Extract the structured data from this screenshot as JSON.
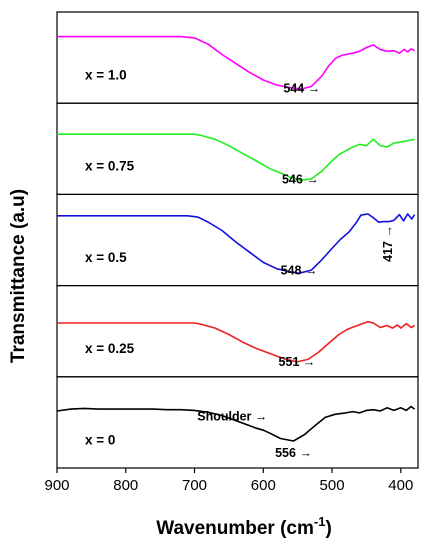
{
  "chart_data": {
    "type": "line",
    "xlabel": "Wavenumber (cm",
    "xlabel_sup": "-1",
    "xlabel_close": ")",
    "ylabel": "Transmittance (a.u)",
    "xlim": [
      900,
      375
    ],
    "x_reversed": true,
    "x_ticks": [
      900,
      800,
      700,
      600,
      500,
      400
    ],
    "grid": false,
    "legend": "none",
    "panels": [
      {
        "label": "x = 1.0",
        "color": "#ff00ff",
        "annotations": [
          {
            "text": "544 →",
            "x": 544
          }
        ],
        "points": [
          [
            900,
            0.1
          ],
          [
            850,
            0.1
          ],
          [
            800,
            0.1
          ],
          [
            750,
            0.1
          ],
          [
            720,
            0.1
          ],
          [
            700,
            0.12
          ],
          [
            680,
            0.22
          ],
          [
            660,
            0.38
          ],
          [
            640,
            0.52
          ],
          [
            620,
            0.66
          ],
          [
            600,
            0.78
          ],
          [
            580,
            0.86
          ],
          [
            560,
            0.9
          ],
          [
            544,
            0.92
          ],
          [
            530,
            0.88
          ],
          [
            515,
            0.72
          ],
          [
            505,
            0.56
          ],
          [
            495,
            0.44
          ],
          [
            485,
            0.39
          ],
          [
            470,
            0.36
          ],
          [
            460,
            0.33
          ],
          [
            450,
            0.27
          ],
          [
            440,
            0.23
          ],
          [
            430,
            0.3
          ],
          [
            420,
            0.33
          ],
          [
            410,
            0.32
          ],
          [
            402,
            0.36
          ],
          [
            395,
            0.3
          ],
          [
            390,
            0.34
          ],
          [
            385,
            0.29
          ],
          [
            380,
            0.32
          ]
        ]
      },
      {
        "label": "x = 0.75",
        "color": "#22ee22",
        "annotations": [
          {
            "text": "546 →",
            "x": 546
          }
        ],
        "points": [
          [
            900,
            0.2
          ],
          [
            850,
            0.2
          ],
          [
            800,
            0.2
          ],
          [
            750,
            0.2
          ],
          [
            700,
            0.2
          ],
          [
            690,
            0.22
          ],
          [
            670,
            0.28
          ],
          [
            650,
            0.38
          ],
          [
            630,
            0.5
          ],
          [
            610,
            0.62
          ],
          [
            590,
            0.74
          ],
          [
            570,
            0.83
          ],
          [
            560,
            0.88
          ],
          [
            546,
            0.92
          ],
          [
            530,
            0.9
          ],
          [
            515,
            0.78
          ],
          [
            500,
            0.62
          ],
          [
            490,
            0.52
          ],
          [
            480,
            0.46
          ],
          [
            470,
            0.4
          ],
          [
            460,
            0.36
          ],
          [
            450,
            0.38
          ],
          [
            440,
            0.28
          ],
          [
            430,
            0.38
          ],
          [
            420,
            0.4
          ],
          [
            410,
            0.34
          ],
          [
            400,
            0.32
          ],
          [
            390,
            0.3
          ],
          [
            380,
            0.28
          ]
        ]
      },
      {
        "label": "x = 0.5",
        "color": "#1111dd",
        "annotations": [
          {
            "text": "548 →",
            "x": 548
          },
          {
            "text": "417 →",
            "x": 417,
            "rotate": true
          }
        ],
        "points": [
          [
            900,
            0.05
          ],
          [
            850,
            0.05
          ],
          [
            800,
            0.05
          ],
          [
            750,
            0.05
          ],
          [
            710,
            0.05
          ],
          [
            695,
            0.07
          ],
          [
            680,
            0.15
          ],
          [
            660,
            0.28
          ],
          [
            640,
            0.46
          ],
          [
            620,
            0.62
          ],
          [
            600,
            0.78
          ],
          [
            580,
            0.88
          ],
          [
            560,
            0.93
          ],
          [
            548,
            0.95
          ],
          [
            530,
            0.9
          ],
          [
            515,
            0.74
          ],
          [
            500,
            0.56
          ],
          [
            488,
            0.42
          ],
          [
            475,
            0.3
          ],
          [
            465,
            0.16
          ],
          [
            458,
            0.04
          ],
          [
            448,
            0.02
          ],
          [
            440,
            0.08
          ],
          [
            432,
            0.15
          ],
          [
            425,
            0.14
          ],
          [
            417,
            0.14
          ],
          [
            410,
            0.12
          ],
          [
            402,
            0.03
          ],
          [
            396,
            0.13
          ],
          [
            390,
            0.02
          ],
          [
            384,
            0.1
          ],
          [
            380,
            0.03
          ]
        ]
      },
      {
        "label": "x = 0.25",
        "color": "#ee2222",
        "annotations": [
          {
            "text": "551 →",
            "x": 551
          }
        ],
        "points": [
          [
            900,
            0.3
          ],
          [
            850,
            0.3
          ],
          [
            800,
            0.3
          ],
          [
            750,
            0.3
          ],
          [
            700,
            0.3
          ],
          [
            690,
            0.32
          ],
          [
            670,
            0.38
          ],
          [
            650,
            0.48
          ],
          [
            630,
            0.6
          ],
          [
            610,
            0.7
          ],
          [
            590,
            0.78
          ],
          [
            570,
            0.86
          ],
          [
            551,
            0.91
          ],
          [
            535,
            0.87
          ],
          [
            520,
            0.76
          ],
          [
            505,
            0.62
          ],
          [
            490,
            0.48
          ],
          [
            478,
            0.4
          ],
          [
            468,
            0.36
          ],
          [
            458,
            0.32
          ],
          [
            448,
            0.28
          ],
          [
            440,
            0.3
          ],
          [
            430,
            0.37
          ],
          [
            420,
            0.34
          ],
          [
            412,
            0.38
          ],
          [
            405,
            0.33
          ],
          [
            400,
            0.38
          ],
          [
            392,
            0.31
          ],
          [
            385,
            0.37
          ],
          [
            380,
            0.34
          ]
        ]
      },
      {
        "label": "x = 0",
        "color": "#000000",
        "annotations": [
          {
            "text": "Shoulder →",
            "x": 645,
            "y_frac": 0.48
          },
          {
            "text": "556 →",
            "x": 556
          }
        ],
        "points": [
          [
            900,
            0.25
          ],
          [
            880,
            0.22
          ],
          [
            860,
            0.21
          ],
          [
            840,
            0.22
          ],
          [
            820,
            0.22
          ],
          [
            800,
            0.22
          ],
          [
            780,
            0.22
          ],
          [
            760,
            0.22
          ],
          [
            740,
            0.23
          ],
          [
            720,
            0.23
          ],
          [
            700,
            0.24
          ],
          [
            680,
            0.27
          ],
          [
            660,
            0.32
          ],
          [
            640,
            0.4
          ],
          [
            625,
            0.46
          ],
          [
            610,
            0.52
          ],
          [
            600,
            0.55
          ],
          [
            590,
            0.6
          ],
          [
            575,
            0.68
          ],
          [
            556,
            0.72
          ],
          [
            540,
            0.62
          ],
          [
            525,
            0.48
          ],
          [
            510,
            0.35
          ],
          [
            495,
            0.3
          ],
          [
            480,
            0.28
          ],
          [
            470,
            0.26
          ],
          [
            460,
            0.28
          ],
          [
            450,
            0.24
          ],
          [
            440,
            0.23
          ],
          [
            430,
            0.25
          ],
          [
            420,
            0.2
          ],
          [
            410,
            0.24
          ],
          [
            400,
            0.2
          ],
          [
            392,
            0.24
          ],
          [
            385,
            0.18
          ],
          [
            380,
            0.22
          ]
        ]
      }
    ]
  }
}
